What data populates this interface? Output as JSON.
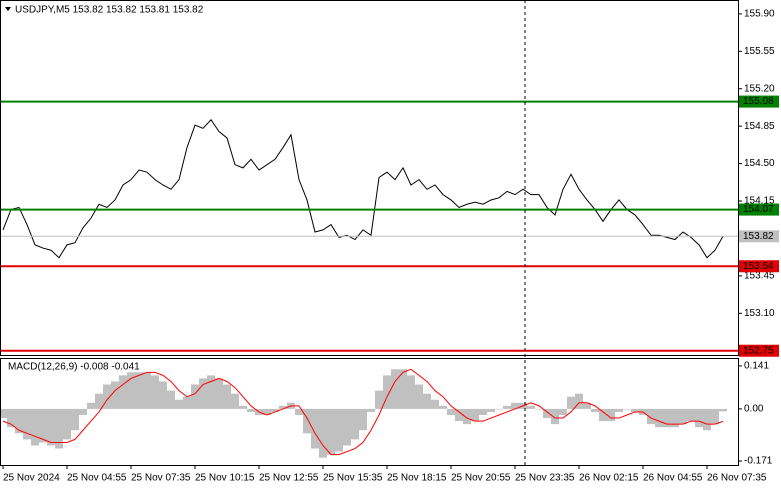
{
  "chart_data": [
    {
      "type": "line",
      "title": "USDJPY,M5  153.82 153.82 153.81 153.82",
      "color": "#000000",
      "grid": true,
      "xlim": [
        0,
        367.5
      ],
      "ylim": [
        152.71,
        156.03
      ],
      "yticks": [
        {
          "value": 155.9,
          "label": "155.90"
        },
        {
          "value": 155.55,
          "label": "155.55"
        },
        {
          "value": 155.2,
          "label": "155.20"
        },
        {
          "value": 154.85,
          "label": "154.85"
        },
        {
          "value": 154.5,
          "label": "154.50"
        },
        {
          "value": 154.15,
          "label": "154.15"
        },
        {
          "value": 153.8,
          "label": "153.80"
        },
        {
          "value": 153.45,
          "label": "153.45"
        },
        {
          "value": 153.1,
          "label": "153.10"
        },
        {
          "value": 152.75,
          "label": "152.75"
        }
      ],
      "levels": [
        {
          "value": 155.08,
          "color": "#008000"
        },
        {
          "value": 154.07,
          "color": "#008000"
        },
        {
          "value": 153.54,
          "color": "#e00000"
        },
        {
          "value": 152.75,
          "color": "#e00000"
        }
      ],
      "last": {
        "value": 153.82,
        "color": "#c0c0c0"
      },
      "x": [
        0,
        4,
        8,
        12,
        16,
        20,
        24,
        28,
        32,
        36,
        40,
        44,
        48,
        52,
        56,
        60,
        64,
        68,
        72,
        76,
        80,
        84,
        88,
        92,
        96,
        100,
        104,
        108,
        112,
        116,
        120,
        124,
        128,
        132,
        136,
        140,
        144,
        148,
        152,
        156,
        160,
        164,
        168,
        172,
        176,
        180,
        184,
        188,
        192,
        196,
        200,
        204,
        208,
        212,
        216,
        220,
        224,
        228,
        232,
        236,
        240,
        244,
        248,
        252,
        256,
        260,
        264,
        268,
        272,
        276,
        280,
        284,
        288,
        292,
        296,
        300,
        304,
        308,
        312,
        316,
        320,
        324,
        328,
        332,
        336,
        340,
        344,
        348,
        352,
        356,
        360
      ],
      "values": [
        153.88,
        154.07,
        154.09,
        153.93,
        153.74,
        153.71,
        153.69,
        153.62,
        153.74,
        153.76,
        153.9,
        153.99,
        154.12,
        154.09,
        154.16,
        154.3,
        154.35,
        154.44,
        154.42,
        154.35,
        154.3,
        154.26,
        154.35,
        154.65,
        154.86,
        154.83,
        154.91,
        154.8,
        154.74,
        154.49,
        154.46,
        154.54,
        154.44,
        154.49,
        154.54,
        154.65,
        154.77,
        154.35,
        154.16,
        153.86,
        153.88,
        153.93,
        153.81,
        153.83,
        153.79,
        153.88,
        153.83,
        154.37,
        154.42,
        154.35,
        154.46,
        154.3,
        154.35,
        154.26,
        154.3,
        154.21,
        154.16,
        154.09,
        154.12,
        154.14,
        154.12,
        154.16,
        154.18,
        154.24,
        154.21,
        154.26,
        154.21,
        154.21,
        154.09,
        154.02,
        154.26,
        154.4,
        154.26,
        154.16,
        154.07,
        153.96,
        154.07,
        154.16,
        154.07,
        154.02,
        153.93,
        153.83,
        153.83,
        153.81,
        153.79,
        153.86,
        153.81,
        153.74,
        153.62,
        153.69,
        153.82
      ]
    },
    {
      "type": "bar",
      "title": "MACD(12,26,9) -0.008 -0.041",
      "grid": true,
      "xlim": [
        0,
        367.5
      ],
      "ylim": [
        -0.184,
        0.167
      ],
      "yticks": [
        0.141,
        {
          "value": 0,
          "label": "0.00"
        },
        -0.171
      ],
      "xticks": [
        {
          "value": 0,
          "label": "25 Nov 2024"
        },
        {
          "value": 32,
          "label": "25 Nov 04:55"
        },
        {
          "value": 64,
          "label": "25 Nov 07:35"
        },
        {
          "value": 96,
          "label": "25 Nov 10:15"
        },
        {
          "value": 128,
          "label": "25 Nov 12:55"
        },
        {
          "value": 160,
          "label": "25 Nov 15:35"
        },
        {
          "value": 192,
          "label": "25 Nov 18:15"
        },
        {
          "value": 224,
          "label": "25 Nov 20:55"
        },
        {
          "value": 256,
          "label": "25 Nov 23:35"
        },
        {
          "value": 288,
          "label": "26 Nov 02:15"
        },
        {
          "value": 320,
          "label": "26 Nov 04:55"
        },
        {
          "value": 352,
          "label": "26 Nov 07:35"
        }
      ],
      "x": [
        0,
        4,
        8,
        12,
        16,
        20,
        24,
        28,
        32,
        36,
        40,
        44,
        48,
        52,
        56,
        60,
        64,
        68,
        72,
        76,
        80,
        84,
        88,
        92,
        96,
        100,
        104,
        108,
        112,
        116,
        120,
        124,
        128,
        132,
        136,
        140,
        144,
        148,
        152,
        156,
        160,
        164,
        168,
        172,
        176,
        180,
        184,
        188,
        192,
        196,
        200,
        204,
        208,
        212,
        216,
        220,
        224,
        228,
        232,
        236,
        240,
        244,
        248,
        252,
        256,
        260,
        264,
        268,
        272,
        276,
        280,
        284,
        288,
        292,
        296,
        300,
        304,
        308,
        312,
        316,
        320,
        324,
        328,
        332,
        336,
        340,
        344,
        348,
        352,
        356,
        360
      ],
      "series": [
        {
          "type": "bar",
          "color": "#c0c0c0",
          "values": [
            -0.03,
            -0.06,
            -0.08,
            -0.1,
            -0.12,
            -0.11,
            -0.12,
            -0.13,
            -0.1,
            -0.07,
            -0.02,
            0.02,
            0.05,
            0.08,
            0.09,
            0.11,
            0.12,
            0.12,
            0.12,
            0.11,
            0.09,
            0.06,
            0.03,
            0.04,
            0.08,
            0.1,
            0.11,
            0.1,
            0.08,
            0.05,
            0.01,
            -0.01,
            -0.02,
            -0.02,
            -0.01,
            0.01,
            0.02,
            -0.02,
            -0.08,
            -0.13,
            -0.16,
            -0.15,
            -0.14,
            -0.12,
            -0.1,
            -0.07,
            -0.01,
            0.06,
            0.11,
            0.13,
            0.13,
            0.11,
            0.08,
            0.05,
            0.03,
            0.01,
            -0.02,
            -0.04,
            -0.05,
            -0.04,
            -0.02,
            -0.01,
            0.0,
            0.01,
            0.02,
            0.02,
            0.01,
            0.0,
            -0.03,
            -0.05,
            -0.02,
            0.04,
            0.05,
            0.02,
            -0.01,
            -0.04,
            -0.04,
            -0.01,
            0.0,
            -0.01,
            -0.02,
            -0.05,
            -0.06,
            -0.06,
            -0.06,
            -0.05,
            -0.04,
            -0.06,
            -0.07,
            -0.05,
            -0.008
          ]
        },
        {
          "type": "line",
          "color": "#ff0000",
          "values": [
            -0.04,
            -0.05,
            -0.07,
            -0.08,
            -0.09,
            -0.1,
            -0.11,
            -0.11,
            -0.11,
            -0.1,
            -0.07,
            -0.04,
            -0.01,
            0.03,
            0.06,
            0.08,
            0.1,
            0.11,
            0.12,
            0.12,
            0.11,
            0.09,
            0.06,
            0.04,
            0.05,
            0.08,
            0.09,
            0.1,
            0.09,
            0.07,
            0.04,
            0.01,
            -0.01,
            -0.02,
            -0.01,
            0.0,
            0.01,
            0.01,
            -0.03,
            -0.08,
            -0.12,
            -0.15,
            -0.15,
            -0.14,
            -0.13,
            -0.11,
            -0.07,
            -0.02,
            0.04,
            0.09,
            0.12,
            0.13,
            0.11,
            0.09,
            0.06,
            0.04,
            0.01,
            -0.01,
            -0.03,
            -0.04,
            -0.04,
            -0.03,
            -0.02,
            -0.01,
            0.0,
            0.01,
            0.02,
            0.01,
            -0.01,
            -0.03,
            -0.03,
            -0.01,
            0.02,
            0.02,
            0.01,
            -0.01,
            -0.03,
            -0.03,
            -0.02,
            -0.01,
            -0.01,
            -0.03,
            -0.04,
            -0.05,
            -0.05,
            -0.05,
            -0.04,
            -0.04,
            -0.05,
            -0.05,
            -0.041
          ]
        }
      ]
    }
  ]
}
